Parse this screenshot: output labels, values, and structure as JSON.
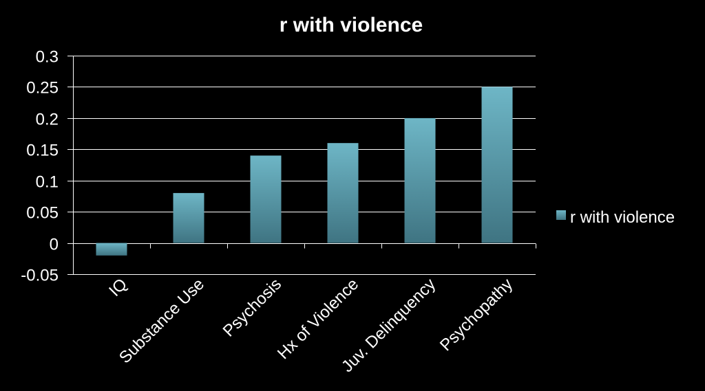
{
  "chart_data": {
    "type": "bar",
    "title": "r with violence",
    "xlabel": "",
    "ylabel": "",
    "categories": [
      "IQ",
      "Substance Use",
      "Psychosis",
      "Hx of Violence",
      "Juv. Delinquency",
      "Psychopathy"
    ],
    "series": [
      {
        "name": "r with violence",
        "values": [
          -0.02,
          0.08,
          0.14,
          0.16,
          0.2,
          0.25
        ]
      }
    ],
    "ylim": [
      -0.05,
      0.3
    ],
    "yticks": [
      "-0.05",
      "0",
      "0.05",
      "0.1",
      "0.15",
      "0.2",
      "0.25",
      "0.3"
    ],
    "grid": true,
    "legend_position": "right",
    "colors": {
      "background": "#000000",
      "text": "#ffffff",
      "bar_top": "#6eb6c6",
      "bar_bottom": "#3f7482"
    }
  }
}
